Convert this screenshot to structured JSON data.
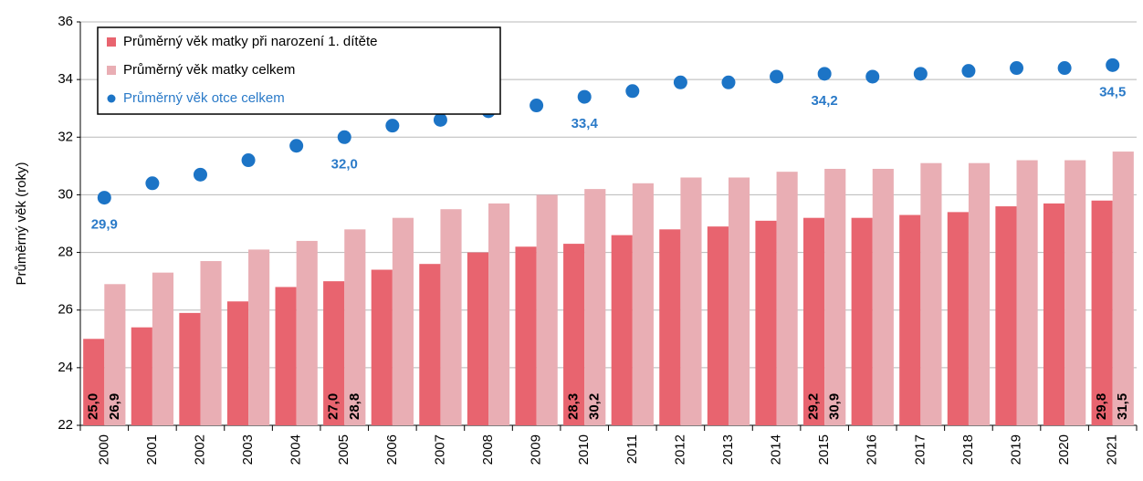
{
  "chart_data": {
    "type": "bar_scatter",
    "y_label": "Průměrný věk (roky)",
    "categories": [
      "2000",
      "2001",
      "2002",
      "2003",
      "2004",
      "2005",
      "2006",
      "2007",
      "2008",
      "2009",
      "2010",
      "2011",
      "2012",
      "2013",
      "2014",
      "2015",
      "2016",
      "2017",
      "2018",
      "2019",
      "2020",
      "2021"
    ],
    "ylim": [
      22,
      36
    ],
    "yticks": [
      22,
      24,
      26,
      28,
      30,
      32,
      34,
      36
    ],
    "grid": true,
    "legend": "top-left",
    "series": [
      {
        "name": "Průměrný věk matky při narození 1. dítěte",
        "kind": "bar",
        "color": "#e8646f",
        "values": [
          25.0,
          25.4,
          25.9,
          26.3,
          26.8,
          27.0,
          27.4,
          27.6,
          28.0,
          28.2,
          28.3,
          28.6,
          28.8,
          28.9,
          29.1,
          29.2,
          29.2,
          29.3,
          29.4,
          29.6,
          29.7,
          29.8
        ],
        "value_labels": [
          "25,0",
          null,
          null,
          null,
          null,
          "27,0",
          null,
          null,
          null,
          null,
          "28,3",
          null,
          null,
          null,
          null,
          "29,2",
          null,
          null,
          null,
          null,
          null,
          "29,8"
        ]
      },
      {
        "name": "Průměrný věk matky celkem",
        "kind": "bar",
        "color": "#e9aeb4",
        "values": [
          26.9,
          27.3,
          27.7,
          28.1,
          28.4,
          28.8,
          29.2,
          29.5,
          29.7,
          30.0,
          30.2,
          30.4,
          30.6,
          30.6,
          30.8,
          30.9,
          30.9,
          31.1,
          31.1,
          31.2,
          31.2,
          31.5
        ],
        "value_labels": [
          "26,9",
          null,
          null,
          null,
          null,
          "28,8",
          null,
          null,
          null,
          null,
          "30,2",
          null,
          null,
          null,
          null,
          "30,9",
          null,
          null,
          null,
          null,
          null,
          "31,5"
        ]
      },
      {
        "name": "Průměrný věk otce celkem",
        "kind": "scatter",
        "color": "#1c74c6",
        "values": [
          29.9,
          30.4,
          30.7,
          31.2,
          31.7,
          32.0,
          32.4,
          32.6,
          32.9,
          33.1,
          33.4,
          33.6,
          33.9,
          33.9,
          34.1,
          34.2,
          34.1,
          34.2,
          34.3,
          34.4,
          34.4,
          34.5
        ],
        "value_labels": [
          "29,9",
          null,
          null,
          null,
          null,
          "32,0",
          null,
          null,
          null,
          null,
          "33,4",
          null,
          null,
          null,
          null,
          "34,2",
          null,
          null,
          null,
          null,
          null,
          "34,5"
        ]
      }
    ]
  }
}
